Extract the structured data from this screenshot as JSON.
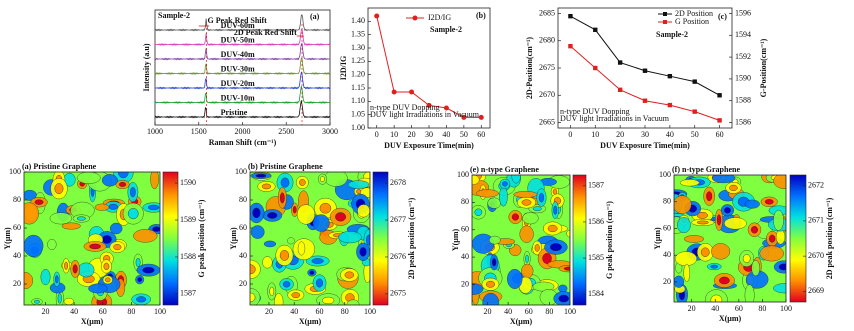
{
  "chart_data": [
    {
      "type": "spectra",
      "panel_label": "(a)",
      "annotation": "Sample-2",
      "annotations": [
        "G Peak Red Shift",
        "2D Peak Red Shift"
      ],
      "xlabel": "Raman Shift (cm⁻¹)",
      "ylabel": "Intensity (a.u)",
      "xlim": [
        1000,
        3000
      ],
      "xticks": [
        1000,
        1500,
        2000,
        2500,
        3000
      ],
      "series": [
        {
          "name": "DUV-60m",
          "color": "#555555"
        },
        {
          "name": "DUV-50m",
          "color": "#d63cb0"
        },
        {
          "name": "DUV-40m",
          "color": "#7a3fa0"
        },
        {
          "name": "DUV-30m",
          "color": "#6b8e23"
        },
        {
          "name": "DUV-20m",
          "color": "#2040d0"
        },
        {
          "name": "DUV-10m",
          "color": "#1a9a2a"
        },
        {
          "name": "Pristine",
          "color": "#111111"
        }
      ]
    },
    {
      "type": "line",
      "panel_label": "(b)",
      "annotation": "Sample-2",
      "notes": [
        "n-type DUV Dopping",
        "DUV light Irradiations in Vacuum"
      ],
      "xlabel": "DUV Exposure Time(min)",
      "ylabel": "I2D/IG",
      "x": [
        0,
        10,
        20,
        30,
        40,
        50,
        60
      ],
      "xlim": [
        -5,
        65
      ],
      "xticks": [
        0,
        10,
        20,
        30,
        40,
        50,
        60
      ],
      "ylim": [
        1.0,
        1.45
      ],
      "yticks": [
        {
          "value": 1.0,
          "label": "1.00"
        },
        {
          "value": 1.05,
          "label": "1.05"
        },
        {
          "value": 1.1,
          "label": "1.10"
        },
        {
          "value": 1.15,
          "label": "1.15"
        },
        {
          "value": 1.2,
          "label": "1.20"
        },
        {
          "value": 1.25,
          "label": "1.25"
        },
        {
          "value": 1.3,
          "label": "1.30"
        },
        {
          "value": 1.35,
          "label": "1.35"
        },
        {
          "value": 1.4,
          "label": "1.40"
        }
      ],
      "series": [
        {
          "name": "I2D/IG",
          "color": "#e02020",
          "values": [
            1.42,
            1.135,
            1.135,
            1.085,
            1.075,
            1.04,
            1.04
          ]
        }
      ]
    },
    {
      "type": "dual-line",
      "panel_label": "(c)",
      "annotation": "Sample-2",
      "notes": [
        "n-type DUV Dopping",
        "DUV light Irradiations in Vacuum"
      ],
      "xlabel": "DUV Exposure Time(min)",
      "ylabel": "2D-Position(cm⁻¹)",
      "y2label": "G-Position(cm⁻¹)",
      "x": [
        0,
        10,
        20,
        30,
        40,
        50,
        60
      ],
      "xlim": [
        -5,
        65
      ],
      "xticks": [
        0,
        10,
        20,
        30,
        40,
        50,
        60
      ],
      "ylim": [
        2664,
        2686
      ],
      "yticks": [
        2665,
        2670,
        2675,
        2680,
        2685
      ],
      "y2lim": [
        1585.5,
        1596.5
      ],
      "y2ticks": [
        1586,
        1588,
        1590,
        1592,
        1594,
        1596
      ],
      "series": [
        {
          "name": "2D Position",
          "color": "#111111",
          "values": [
            2684.5,
            2682,
            2676,
            2674.5,
            2673.5,
            2672.5,
            2670
          ]
        },
        {
          "name": "G Position",
          "color": "#e02020",
          "axis": "y2",
          "values": [
            1593,
            1591,
            1589,
            1588,
            1587.6,
            1587,
            1586.2
          ]
        }
      ]
    },
    {
      "type": "map",
      "title": "(a) Pristine Graphene",
      "xlabel": "X(μm)",
      "ylabel": "Y(μm)",
      "xlim": [
        5,
        100
      ],
      "xticks": [
        20,
        40,
        60,
        80,
        100
      ],
      "ylim": [
        5,
        100
      ],
      "yticks": [
        20,
        40,
        60,
        80,
        100
      ],
      "colorbar_label": "G peak position (cm⁻¹)",
      "clim": [
        1586.7,
        1590.3
      ],
      "cticks": [
        1587,
        1588,
        1589,
        1590
      ],
      "colors": [
        "#e00020",
        "#ff9000",
        "#ffff00",
        "#80ff40",
        "#00e0e0",
        "#0070ff",
        "#0000c0"
      ]
    },
    {
      "type": "map",
      "title": "(b) Pristine Graphene",
      "xlabel": "X(μm)",
      "ylabel": "Y(μm)",
      "xlim": [
        5,
        100
      ],
      "xticks": [
        20,
        40,
        60,
        80,
        100
      ],
      "ylim": [
        5,
        100
      ],
      "yticks": [
        20,
        40,
        60,
        80,
        100
      ],
      "colorbar_label": "2D peak position (cm⁻¹)",
      "clim": [
        2674.7,
        2678.3
      ],
      "cticks": [
        2675,
        2676,
        2677,
        2678
      ],
      "colors": [
        "#0000c0",
        "#0070ff",
        "#00e0e0",
        "#80ff40",
        "#ffff00",
        "#ff9000",
        "#e00020"
      ]
    },
    {
      "type": "map",
      "title": "(e) n-type Graphene",
      "xlabel": "X(μm)",
      "ylabel": "Y(μm)",
      "xlim": [
        5,
        100
      ],
      "xticks": [
        20,
        40,
        60,
        80,
        100
      ],
      "ylim": [
        5,
        100
      ],
      "yticks": [
        20,
        40,
        60,
        80,
        100
      ],
      "colorbar_label": "G peak position (cm⁻¹)",
      "clim": [
        1583.7,
        1587.3
      ],
      "cticks": [
        1584,
        1585,
        1586,
        1587
      ],
      "colors": [
        "#e00020",
        "#ff9000",
        "#ffff00",
        "#80ff40",
        "#00e0e0",
        "#0070ff",
        "#0000c0"
      ]
    },
    {
      "type": "map",
      "title": "(f) n-type Graphene",
      "xlabel": "X(μm)",
      "ylabel": "Y(μm)",
      "xlim": [
        5,
        100
      ],
      "xticks": [
        20,
        40,
        60,
        80,
        100
      ],
      "ylim": [
        5,
        100
      ],
      "yticks": [
        20,
        40,
        60,
        80,
        100
      ],
      "colorbar_label": "2D peak position (cm⁻¹)",
      "clim": [
        2668.7,
        2672.3
      ],
      "cticks": [
        2669,
        2670,
        2671,
        2672
      ],
      "colors": [
        "#0000c0",
        "#0070ff",
        "#00e0e0",
        "#80ff40",
        "#ffff00",
        "#ff9000",
        "#e00020"
      ]
    }
  ]
}
